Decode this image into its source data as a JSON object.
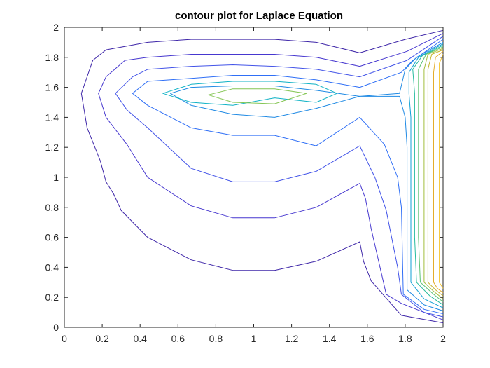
{
  "chart_data": {
    "type": "contour",
    "title": "contour plot for Laplace Equation",
    "xlabel": "",
    "ylabel": "",
    "xlim": [
      0,
      2
    ],
    "ylim": [
      0,
      2
    ],
    "x_ticks": [
      "0",
      "0.2",
      "0.4",
      "0.6",
      "0.8",
      "1",
      "1.2",
      "1.4",
      "1.6",
      "1.8",
      "2"
    ],
    "y_ticks": [
      "0",
      "0.2",
      "0.4",
      "0.6",
      "0.8",
      "1",
      "1.2",
      "1.4",
      "1.6",
      "1.8",
      "2"
    ],
    "grid": false,
    "colormap": "parula",
    "series": [
      {
        "level": 1,
        "color": "#3e26a8",
        "points": [
          [
            2.0,
            1.98
          ],
          [
            1.8,
            1.92
          ],
          [
            1.56,
            1.83
          ],
          [
            1.33,
            1.9
          ],
          [
            1.11,
            1.92
          ],
          [
            0.89,
            1.92
          ],
          [
            0.67,
            1.92
          ],
          [
            0.44,
            1.9
          ],
          [
            0.22,
            1.85
          ],
          [
            0.15,
            1.78
          ],
          [
            0.09,
            1.56
          ],
          [
            0.12,
            1.33
          ],
          [
            0.19,
            1.11
          ],
          [
            0.22,
            0.97
          ],
          [
            0.26,
            0.89
          ],
          [
            0.3,
            0.78
          ],
          [
            0.44,
            0.6
          ],
          [
            0.67,
            0.45
          ],
          [
            0.89,
            0.38
          ],
          [
            1.11,
            0.38
          ],
          [
            1.33,
            0.44
          ],
          [
            1.56,
            0.57
          ],
          [
            1.58,
            0.44
          ],
          [
            1.62,
            0.31
          ],
          [
            1.78,
            0.08
          ],
          [
            2.0,
            0.03
          ]
        ]
      },
      {
        "level": 2,
        "color": "#4637cf",
        "points": [
          [
            2.0,
            1.96
          ],
          [
            1.81,
            1.84
          ],
          [
            1.56,
            1.74
          ],
          [
            1.33,
            1.8
          ],
          [
            1.11,
            1.82
          ],
          [
            0.89,
            1.82
          ],
          [
            0.67,
            1.82
          ],
          [
            0.44,
            1.8
          ],
          [
            0.32,
            1.78
          ],
          [
            0.22,
            1.67
          ],
          [
            0.18,
            1.56
          ],
          [
            0.22,
            1.4
          ],
          [
            0.33,
            1.22
          ],
          [
            0.44,
            1.0
          ],
          [
            0.67,
            0.81
          ],
          [
            0.89,
            0.73
          ],
          [
            1.11,
            0.73
          ],
          [
            1.33,
            0.8
          ],
          [
            1.56,
            0.96
          ],
          [
            1.59,
            0.86
          ],
          [
            1.62,
            0.66
          ],
          [
            1.7,
            0.22
          ],
          [
            1.78,
            0.16
          ],
          [
            2.0,
            0.05
          ]
        ]
      },
      {
        "level": 3,
        "color": "#4253e8",
        "points": [
          [
            2.0,
            1.94
          ],
          [
            1.81,
            1.78
          ],
          [
            1.56,
            1.67
          ],
          [
            1.33,
            1.72
          ],
          [
            1.11,
            1.74
          ],
          [
            0.89,
            1.75
          ],
          [
            0.67,
            1.74
          ],
          [
            0.44,
            1.72
          ],
          [
            0.36,
            1.67
          ],
          [
            0.27,
            1.56
          ],
          [
            0.33,
            1.45
          ],
          [
            0.44,
            1.33
          ],
          [
            0.67,
            1.06
          ],
          [
            0.89,
            0.97
          ],
          [
            1.11,
            0.97
          ],
          [
            1.33,
            1.04
          ],
          [
            1.56,
            1.21
          ],
          [
            1.64,
            1.0
          ],
          [
            1.7,
            0.78
          ],
          [
            1.76,
            0.4
          ],
          [
            1.78,
            0.22
          ],
          [
            1.9,
            0.1
          ],
          [
            2.0,
            0.07
          ]
        ]
      },
      {
        "level": 4,
        "color": "#2f6ff6",
        "points": [
          [
            2.0,
            1.92
          ],
          [
            1.84,
            1.78
          ],
          [
            1.78,
            1.7
          ],
          [
            1.56,
            1.6
          ],
          [
            1.33,
            1.65
          ],
          [
            1.11,
            1.68
          ],
          [
            0.89,
            1.68
          ],
          [
            0.67,
            1.66
          ],
          [
            0.44,
            1.64
          ],
          [
            0.36,
            1.56
          ],
          [
            0.44,
            1.48
          ],
          [
            0.67,
            1.33
          ],
          [
            0.89,
            1.28
          ],
          [
            1.11,
            1.28
          ],
          [
            1.33,
            1.21
          ],
          [
            1.56,
            1.4
          ],
          [
            1.69,
            1.22
          ],
          [
            1.76,
            1.0
          ],
          [
            1.78,
            0.8
          ],
          [
            1.79,
            0.22
          ],
          [
            1.9,
            0.12
          ],
          [
            2.0,
            0.09
          ]
        ]
      },
      {
        "level": 5,
        "color": "#1f8ae4",
        "points": [
          [
            2.0,
            1.9
          ],
          [
            1.86,
            1.8
          ],
          [
            1.8,
            1.72
          ],
          [
            1.77,
            1.56
          ],
          [
            1.56,
            1.54
          ],
          [
            1.33,
            1.58
          ],
          [
            1.11,
            1.61
          ],
          [
            0.89,
            1.61
          ],
          [
            0.67,
            1.6
          ],
          [
            0.56,
            1.56
          ],
          [
            0.67,
            1.48
          ],
          [
            0.89,
            1.42
          ],
          [
            1.11,
            1.4
          ],
          [
            1.33,
            1.46
          ],
          [
            1.56,
            1.54
          ],
          [
            1.77,
            1.54
          ],
          [
            1.8,
            1.4
          ],
          [
            1.81,
            1.2
          ],
          [
            1.81,
            0.6
          ],
          [
            1.81,
            0.25
          ],
          [
            1.9,
            0.15
          ],
          [
            2.0,
            0.11
          ]
        ]
      },
      {
        "level": 6,
        "color": "#12a1d6",
        "points": [
          [
            2.0,
            1.89
          ],
          [
            1.87,
            1.8
          ],
          [
            1.82,
            1.7
          ],
          [
            1.82,
            1.56
          ],
          [
            1.83,
            1.4
          ],
          [
            1.83,
            0.6
          ],
          [
            1.83,
            0.3
          ],
          [
            1.9,
            0.19
          ],
          [
            2.0,
            0.13
          ]
        ]
      },
      {
        "level": 7,
        "color": "#0fb2c5",
        "points": [
          [
            1.11,
            1.53
          ],
          [
            1.33,
            1.5
          ],
          [
            1.44,
            1.56
          ],
          [
            1.33,
            1.62
          ],
          [
            1.11,
            1.64
          ],
          [
            0.89,
            1.64
          ],
          [
            0.67,
            1.62
          ],
          [
            0.52,
            1.56
          ],
          [
            0.67,
            1.5
          ],
          [
            0.89,
            1.48
          ],
          [
            1.11,
            1.53
          ]
        ]
      },
      {
        "level": 8,
        "color": "#26bc9e",
        "points": [
          [
            2.0,
            1.88
          ],
          [
            1.89,
            1.81
          ],
          [
            1.84,
            1.72
          ],
          [
            1.85,
            1.56
          ],
          [
            1.85,
            0.6
          ],
          [
            1.86,
            0.3
          ],
          [
            1.93,
            0.21
          ],
          [
            2.0,
            0.15
          ]
        ]
      },
      {
        "level": 9,
        "color": "#5bc474",
        "points": [
          [
            2.0,
            1.87
          ],
          [
            1.91,
            1.82
          ],
          [
            1.87,
            1.72
          ],
          [
            1.87,
            1.56
          ],
          [
            1.87,
            0.6
          ],
          [
            1.88,
            0.3
          ],
          [
            1.95,
            0.22
          ],
          [
            2.0,
            0.17
          ]
        ]
      },
      {
        "level": 10,
        "color": "#84c553",
        "points": [
          [
            0.76,
            1.55
          ],
          [
            0.89,
            1.59
          ],
          [
            1.11,
            1.59
          ],
          [
            1.28,
            1.56
          ],
          [
            1.11,
            1.49
          ],
          [
            0.89,
            1.5
          ],
          [
            0.76,
            1.55
          ]
        ]
      },
      {
        "level": 11,
        "color": "#a4be3c",
        "points": [
          [
            2.0,
            1.86
          ],
          [
            1.92,
            1.82
          ],
          [
            1.9,
            1.72
          ],
          [
            1.9,
            1.56
          ],
          [
            1.9,
            0.6
          ],
          [
            1.9,
            0.3
          ],
          [
            1.95,
            0.24
          ],
          [
            2.0,
            0.19
          ]
        ]
      },
      {
        "level": 12,
        "color": "#c6b42c",
        "points": [
          [
            2.0,
            1.85
          ],
          [
            1.94,
            1.82
          ],
          [
            1.92,
            1.72
          ],
          [
            1.92,
            0.3
          ],
          [
            1.96,
            0.25
          ],
          [
            2.0,
            0.21
          ]
        ]
      },
      {
        "level": 13,
        "color": "#e4ad2b",
        "points": [
          [
            2.0,
            1.84
          ],
          [
            1.96,
            1.8
          ],
          [
            1.95,
            1.7
          ],
          [
            1.95,
            0.3
          ],
          [
            1.97,
            0.26
          ],
          [
            2.0,
            0.23
          ]
        ]
      },
      {
        "level": 14,
        "color": "#f5c52c",
        "points": [
          [
            2.0,
            1.82
          ],
          [
            1.98,
            1.76
          ],
          [
            1.98,
            0.3
          ],
          [
            2.0,
            0.26
          ]
        ]
      }
    ]
  }
}
